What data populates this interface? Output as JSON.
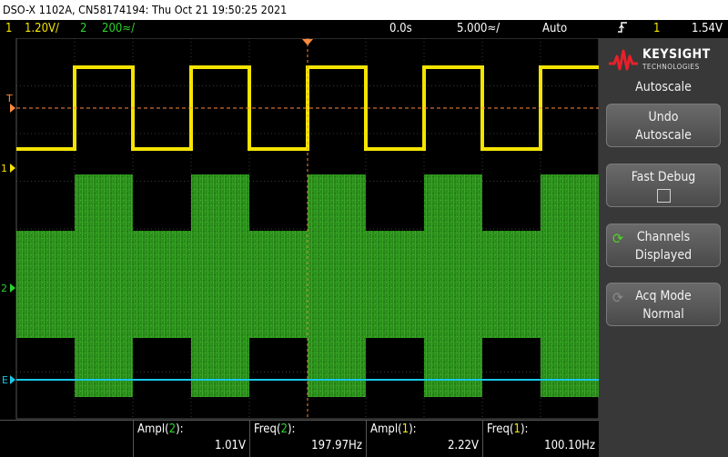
{
  "title": "DSO-X 1102A, CN58174194: Thu Oct 21 19:50:25 2021",
  "status": {
    "ch1_num": "1",
    "ch1_scale": "1.20V/",
    "ch2_num": "2",
    "ch2_scale": "200≈/",
    "delay": "0.0s",
    "timebase": "5.000≈/",
    "trigger_mode": "Auto",
    "trigger_icon": "trigger-rising-edge-icon",
    "trigger_source": "1",
    "trigger_level": "1.54V"
  },
  "markers": {
    "trigger": "T",
    "ch1": "1",
    "ch2": "2",
    "external": "E"
  },
  "colors": {
    "ch1": "#f5e400",
    "ch2": "#2bd32b",
    "ext": "#19c8e6",
    "trigger_line": "#ff8a3d",
    "grid": "#3a3a3a"
  },
  "panel": {
    "brand": "KEYSIGHT",
    "brand_sub": "TECHNOLOGIES",
    "title": "Autoscale",
    "buttons": [
      {
        "line1": "Undo",
        "line2": "Autoscale"
      },
      {
        "line1": "Fast Debug",
        "line2": ""
      },
      {
        "line1": "Channels",
        "line2": "Displayed",
        "icon": "rotate-green-icon"
      },
      {
        "line1": "Acq Mode",
        "line2": "Normal",
        "icon": "rotate-grey-icon"
      }
    ]
  },
  "measurements": [
    {
      "name": "Ampl",
      "channel": "2",
      "value": "1.01V"
    },
    {
      "name": "Freq",
      "channel": "2",
      "value": "197.97Hz"
    },
    {
      "name": "Ampl",
      "channel": "1",
      "value": "2.22V"
    },
    {
      "name": "Freq",
      "channel": "1",
      "value": "100.10Hz"
    }
  ],
  "waveforms": {
    "ch1": {
      "frequency_hz": 100.1,
      "amplitude_v": 2.22
    },
    "ch2": {
      "frequency_hz": 197.97,
      "amplitude_v": 1.01
    }
  }
}
